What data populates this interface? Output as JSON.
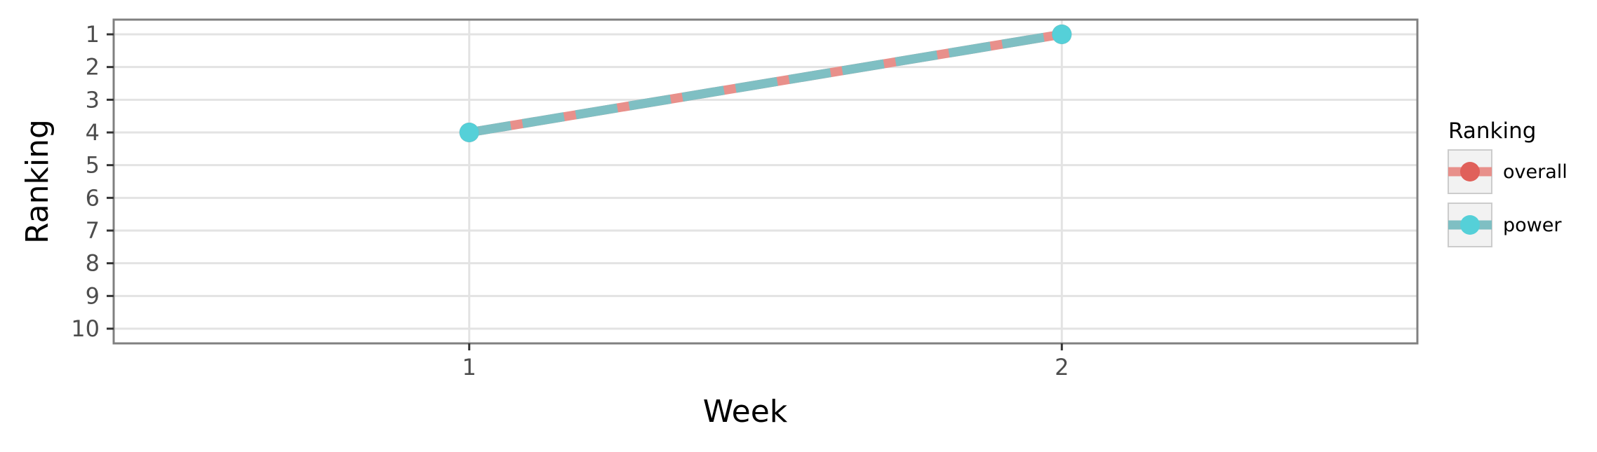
{
  "chart_data": {
    "type": "line",
    "title": "",
    "xlabel": "Week",
    "ylabel": "Ranking",
    "x": [
      1,
      2
    ],
    "x_ticks": [
      "1",
      "2"
    ],
    "xlim": [
      0.4,
      2.6
    ],
    "y_ticks": [
      "1",
      "2",
      "3",
      "4",
      "5",
      "6",
      "7",
      "8",
      "9",
      "10"
    ],
    "ylim": [
      0.55,
      10.45
    ],
    "y_reversed": true,
    "grid": true,
    "legend": {
      "title": "Ranking",
      "position": "right"
    },
    "series": [
      {
        "name": "overall",
        "color": "#e0605a",
        "line_color": "#e8908b",
        "values": [
          4,
          1
        ]
      },
      {
        "name": "power",
        "color": "#55d0d8",
        "line_color": "#7fbfc3",
        "values": [
          4,
          1
        ]
      }
    ]
  }
}
